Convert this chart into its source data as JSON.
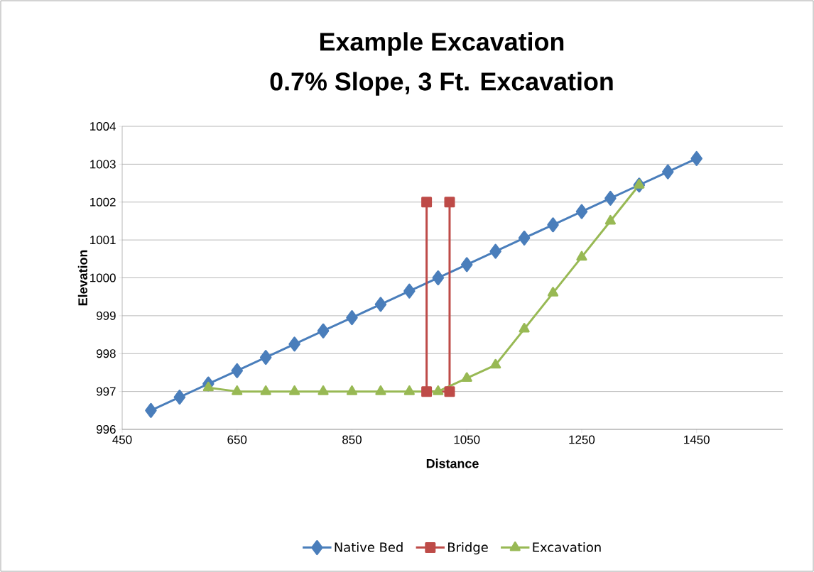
{
  "chart_data": {
    "type": "line",
    "title": "Example Excavation",
    "subtitle": "0.7% Slope, 3 Ft. Excavation",
    "xlabel": "Distance",
    "ylabel": "Elevation",
    "series": [
      {
        "name": "Native Bed",
        "color": "#4a7ebb",
        "marker": "diamond",
        "x": [
          500,
          550,
          600,
          650,
          700,
          750,
          800,
          850,
          900,
          950,
          1000,
          1050,
          1100,
          1150,
          1200,
          1250,
          1300,
          1350,
          1400,
          1450
        ],
        "values": [
          996.5,
          996.85,
          997.2,
          997.55,
          997.9,
          998.25,
          998.6,
          998.95,
          999.3,
          999.65,
          1000,
          1000.35,
          1000.7,
          1001.05,
          1001.4,
          1001.75,
          1002.1,
          1002.45,
          1002.8,
          1003.15
        ]
      },
      {
        "name": "Bridge",
        "color": "#be4b48",
        "marker": "square",
        "x": [
          980,
          980,
          1020,
          1020
        ],
        "values": [
          1002,
          997,
          997,
          1002
        ]
      },
      {
        "name": "Excavation",
        "color": "#98b954",
        "marker": "triangle",
        "x": [
          600,
          650,
          700,
          750,
          800,
          850,
          900,
          950,
          1000,
          1050,
          1100,
          1150,
          1200,
          1250,
          1300,
          1350
        ],
        "values": [
          997.1,
          997,
          997,
          997,
          997,
          997,
          997,
          997,
          997,
          997.35,
          997.7,
          998.65,
          999.6,
          1000.55,
          1001.5,
          1002.45
        ]
      }
    ],
    "xlim": [
      450,
      1600
    ],
    "ylim": [
      996,
      1004
    ],
    "xticks": [
      450,
      650,
      850,
      1050,
      1250,
      1450
    ],
    "yticks": [
      996,
      997,
      998,
      999,
      1000,
      1001,
      1002,
      1003,
      1004
    ],
    "grid": "y",
    "legend": "bottom",
    "line_style": "solid"
  }
}
